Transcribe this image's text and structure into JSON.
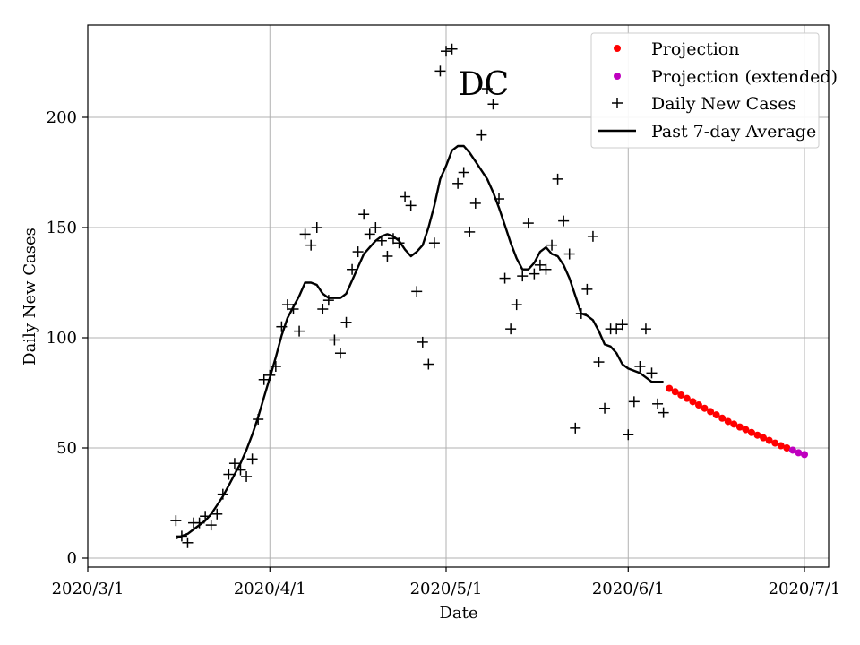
{
  "chart_data": {
    "type": "scatter",
    "title": "DC",
    "xlabel": "Date",
    "ylabel": "Daily New Cases",
    "x_type": "date",
    "xlim": [
      "2020-03-01",
      "2020-07-01"
    ],
    "ylim": [
      -3,
      243
    ],
    "x_ticks": [
      "2020-03-01",
      "2020-04-01",
      "2020-05-01",
      "2020-06-01",
      "2020-07-01"
    ],
    "x_tick_labels": [
      "2020/3/1",
      "2020/4/1",
      "2020/5/1",
      "2020/6/1",
      "2020/7/1"
    ],
    "y_ticks": [
      0,
      50,
      100,
      150,
      200
    ],
    "y_tick_labels": [
      "0",
      "50",
      "100",
      "150",
      "200"
    ],
    "grid": true,
    "legend_position": "top-right",
    "colors": {
      "projection": "#ff0000",
      "projection_extended": "#bf00bf",
      "daily": "#000000",
      "average": "#000000",
      "grid": "#b0b0b0"
    },
    "series": [
      {
        "name": "Projection",
        "kind": "scatter-dot",
        "points": [
          [
            "2020-06-08",
            77
          ],
          [
            "2020-06-09",
            75.5
          ],
          [
            "2020-06-10",
            74
          ],
          [
            "2020-06-11",
            72.5
          ],
          [
            "2020-06-12",
            71
          ],
          [
            "2020-06-13",
            69.5
          ],
          [
            "2020-06-14",
            68
          ],
          [
            "2020-06-15",
            66.5
          ],
          [
            "2020-06-16",
            65
          ],
          [
            "2020-06-17",
            63.5
          ],
          [
            "2020-06-18",
            62
          ],
          [
            "2020-06-19",
            60.8
          ],
          [
            "2020-06-20",
            59.5
          ],
          [
            "2020-06-21",
            58.3
          ],
          [
            "2020-06-22",
            57
          ],
          [
            "2020-06-23",
            55.8
          ],
          [
            "2020-06-24",
            54.6
          ],
          [
            "2020-06-25",
            53.4
          ],
          [
            "2020-06-26",
            52.2
          ],
          [
            "2020-06-27",
            51
          ],
          [
            "2020-06-28",
            50
          ]
        ]
      },
      {
        "name": "Projection (extended)",
        "kind": "scatter-dot",
        "points": [
          [
            "2020-06-29",
            49
          ],
          [
            "2020-06-30",
            47.8
          ],
          [
            "2020-07-01",
            47
          ]
        ]
      },
      {
        "name": "Daily New Cases",
        "kind": "scatter-plus",
        "points": [
          [
            "2020-03-16",
            17
          ],
          [
            "2020-03-17",
            10
          ],
          [
            "2020-03-18",
            7
          ],
          [
            "2020-03-19",
            16
          ],
          [
            "2020-03-20",
            16
          ],
          [
            "2020-03-21",
            19
          ],
          [
            "2020-03-22",
            15
          ],
          [
            "2020-03-23",
            20
          ],
          [
            "2020-03-24",
            29
          ],
          [
            "2020-03-25",
            38
          ],
          [
            "2020-03-26",
            43
          ],
          [
            "2020-03-27",
            40
          ],
          [
            "2020-03-28",
            37
          ],
          [
            "2020-03-29",
            45
          ],
          [
            "2020-03-30",
            63
          ],
          [
            "2020-03-31",
            81
          ],
          [
            "2020-04-01",
            83
          ],
          [
            "2020-04-02",
            87
          ],
          [
            "2020-04-03",
            105
          ],
          [
            "2020-04-04",
            115
          ],
          [
            "2020-04-05",
            113
          ],
          [
            "2020-04-06",
            103
          ],
          [
            "2020-04-07",
            147
          ],
          [
            "2020-04-08",
            142
          ],
          [
            "2020-04-09",
            150
          ],
          [
            "2020-04-10",
            113
          ],
          [
            "2020-04-11",
            117
          ],
          [
            "2020-04-12",
            99
          ],
          [
            "2020-04-13",
            93
          ],
          [
            "2020-04-14",
            107
          ],
          [
            "2020-04-15",
            131
          ],
          [
            "2020-04-16",
            139
          ],
          [
            "2020-04-17",
            156
          ],
          [
            "2020-04-18",
            147
          ],
          [
            "2020-04-19",
            150
          ],
          [
            "2020-04-20",
            144
          ],
          [
            "2020-04-21",
            137
          ],
          [
            "2020-04-22",
            145
          ],
          [
            "2020-04-23",
            143
          ],
          [
            "2020-04-24",
            164
          ],
          [
            "2020-04-25",
            160
          ],
          [
            "2020-04-26",
            121
          ],
          [
            "2020-04-27",
            98
          ],
          [
            "2020-04-28",
            88
          ],
          [
            "2020-04-29",
            143
          ],
          [
            "2020-04-30",
            221
          ],
          [
            "2020-05-01",
            230
          ],
          [
            "2020-05-02",
            231
          ],
          [
            "2020-05-03",
            170
          ],
          [
            "2020-05-04",
            175
          ],
          [
            "2020-05-05",
            148
          ],
          [
            "2020-05-06",
            161
          ],
          [
            "2020-05-07",
            192
          ],
          [
            "2020-05-08",
            213
          ],
          [
            "2020-05-09",
            206
          ],
          [
            "2020-05-10",
            163
          ],
          [
            "2020-05-11",
            127
          ],
          [
            "2020-05-12",
            104
          ],
          [
            "2020-05-13",
            115
          ],
          [
            "2020-05-14",
            128
          ],
          [
            "2020-05-15",
            152
          ],
          [
            "2020-05-16",
            129
          ],
          [
            "2020-05-17",
            133
          ],
          [
            "2020-05-18",
            131
          ],
          [
            "2020-05-19",
            142
          ],
          [
            "2020-05-20",
            172
          ],
          [
            "2020-05-21",
            153
          ],
          [
            "2020-05-22",
            138
          ],
          [
            "2020-05-23",
            59
          ],
          [
            "2020-05-24",
            111
          ],
          [
            "2020-05-25",
            122
          ],
          [
            "2020-05-26",
            146
          ],
          [
            "2020-05-27",
            89
          ],
          [
            "2020-05-28",
            68
          ],
          [
            "2020-05-29",
            104
          ],
          [
            "2020-05-30",
            104
          ],
          [
            "2020-05-31",
            106
          ],
          [
            "2020-06-01",
            56
          ],
          [
            "2020-06-02",
            71
          ],
          [
            "2020-06-03",
            87
          ],
          [
            "2020-06-04",
            104
          ],
          [
            "2020-06-05",
            84
          ],
          [
            "2020-06-06",
            70
          ],
          [
            "2020-06-07",
            66
          ]
        ]
      },
      {
        "name": "Past 7-day Average",
        "kind": "line",
        "points": [
          [
            "2020-03-16",
            9
          ],
          [
            "2020-03-17",
            10
          ],
          [
            "2020-03-18",
            11
          ],
          [
            "2020-03-19",
            13
          ],
          [
            "2020-03-20",
            15
          ],
          [
            "2020-03-21",
            17
          ],
          [
            "2020-03-22",
            20
          ],
          [
            "2020-03-23",
            24
          ],
          [
            "2020-03-24",
            28
          ],
          [
            "2020-03-25",
            33
          ],
          [
            "2020-03-26",
            38
          ],
          [
            "2020-03-27",
            43
          ],
          [
            "2020-03-28",
            49
          ],
          [
            "2020-03-29",
            56
          ],
          [
            "2020-03-30",
            64
          ],
          [
            "2020-03-31",
            73
          ],
          [
            "2020-04-01",
            82
          ],
          [
            "2020-04-02",
            91
          ],
          [
            "2020-04-03",
            101
          ],
          [
            "2020-04-04",
            109
          ],
          [
            "2020-04-05",
            114
          ],
          [
            "2020-04-06",
            119
          ],
          [
            "2020-04-07",
            125
          ],
          [
            "2020-04-08",
            125
          ],
          [
            "2020-04-09",
            124
          ],
          [
            "2020-04-10",
            120
          ],
          [
            "2020-04-11",
            118
          ],
          [
            "2020-04-12",
            118
          ],
          [
            "2020-04-13",
            118
          ],
          [
            "2020-04-14",
            120
          ],
          [
            "2020-04-15",
            126
          ],
          [
            "2020-04-16",
            132
          ],
          [
            "2020-04-17",
            138
          ],
          [
            "2020-04-18",
            141
          ],
          [
            "2020-04-19",
            144
          ],
          [
            "2020-04-20",
            146
          ],
          [
            "2020-04-21",
            147
          ],
          [
            "2020-04-22",
            146
          ],
          [
            "2020-04-23",
            144
          ],
          [
            "2020-04-24",
            140
          ],
          [
            "2020-04-25",
            137
          ],
          [
            "2020-04-26",
            139
          ],
          [
            "2020-04-27",
            142
          ],
          [
            "2020-04-28",
            150
          ],
          [
            "2020-04-29",
            160
          ],
          [
            "2020-04-30",
            172
          ],
          [
            "2020-05-01",
            178
          ],
          [
            "2020-05-02",
            185
          ],
          [
            "2020-05-03",
            187
          ],
          [
            "2020-05-04",
            187
          ],
          [
            "2020-05-05",
            184
          ],
          [
            "2020-05-06",
            180
          ],
          [
            "2020-05-07",
            176
          ],
          [
            "2020-05-08",
            172
          ],
          [
            "2020-05-09",
            166
          ],
          [
            "2020-05-10",
            159
          ],
          [
            "2020-05-11",
            151
          ],
          [
            "2020-05-12",
            143
          ],
          [
            "2020-05-13",
            136
          ],
          [
            "2020-05-14",
            131
          ],
          [
            "2020-05-15",
            131
          ],
          [
            "2020-05-16",
            134
          ],
          [
            "2020-05-17",
            139
          ],
          [
            "2020-05-18",
            141
          ],
          [
            "2020-05-19",
            138
          ],
          [
            "2020-05-20",
            137
          ],
          [
            "2020-05-21",
            133
          ],
          [
            "2020-05-22",
            127
          ],
          [
            "2020-05-23",
            119
          ],
          [
            "2020-05-24",
            111
          ],
          [
            "2020-05-25",
            110
          ],
          [
            "2020-05-26",
            108
          ],
          [
            "2020-05-27",
            103
          ],
          [
            "2020-05-28",
            97
          ],
          [
            "2020-05-29",
            96
          ],
          [
            "2020-05-30",
            93
          ],
          [
            "2020-05-31",
            88
          ],
          [
            "2020-06-01",
            86
          ],
          [
            "2020-06-02",
            85
          ],
          [
            "2020-06-03",
            84
          ],
          [
            "2020-06-04",
            82
          ],
          [
            "2020-06-05",
            80
          ],
          [
            "2020-06-06",
            80
          ],
          [
            "2020-06-07",
            80
          ]
        ]
      }
    ]
  }
}
